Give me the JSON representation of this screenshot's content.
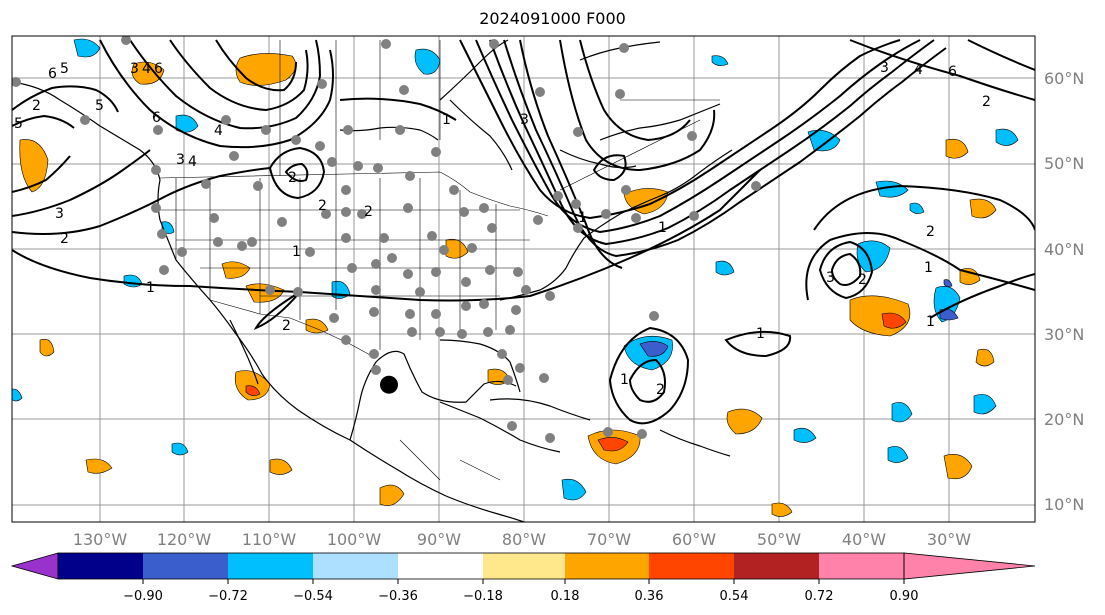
{
  "title": "2024091000 F000",
  "lat_labels": [
    "60°N",
    "50°N",
    "40°N",
    "30°N",
    "20°N",
    "10°N"
  ],
  "lon_labels": [
    "130°W",
    "120°W",
    "110°W",
    "100°W",
    "90°W",
    "80°W",
    "70°W",
    "60°W",
    "50°W",
    "40°W",
    "30°W"
  ],
  "colorbar": {
    "colors": [
      "#9932CC",
      "#00008B",
      "#3A5FCD",
      "#00BFFF",
      "#ADDFFF",
      "#FFFFFF",
      "#FFE88C",
      "#FFA500",
      "#FF4500",
      "#B22222",
      "#FF82AB"
    ],
    "tick_labels": [
      "−0.90",
      "−0.72",
      "−0.54",
      "−0.36",
      "−0.18",
      "0.18",
      "0.36",
      "0.54",
      "0.72",
      "0.90"
    ]
  },
  "contour_labels": [
    "6",
    "5",
    "3",
    "4",
    "6",
    "5",
    "2",
    "5",
    "4",
    "3",
    "6",
    "4",
    "1",
    "3",
    "2",
    "6",
    "4",
    "3",
    "2",
    "1",
    "2",
    "2",
    "1",
    "1",
    "1",
    "2",
    "3",
    "2",
    "1",
    "1",
    "2",
    "1",
    "3",
    "2",
    "1",
    "2"
  ],
  "marker": {
    "lon": -96,
    "lat": 24,
    "color": "#000000"
  }
}
